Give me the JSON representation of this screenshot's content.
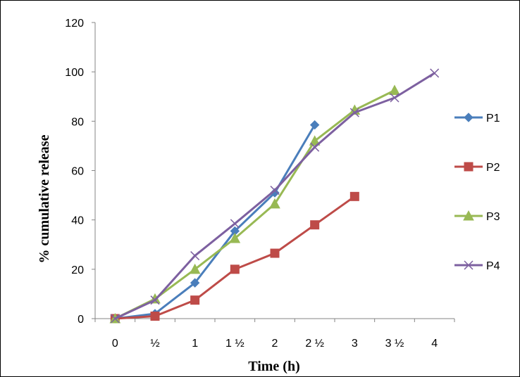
{
  "chart_data": {
    "type": "line",
    "title": "",
    "xlabel": "Time (h)",
    "ylabel": "% cumulative release",
    "categories": [
      "0",
      "½",
      "1",
      "1 ½",
      "2",
      "2 ½",
      "3",
      "3 ½",
      "4"
    ],
    "x": [
      0,
      0.5,
      1,
      1.5,
      2,
      2.5,
      3,
      3.5,
      4
    ],
    "ylim": [
      0,
      120
    ],
    "yticks": [
      0,
      20,
      40,
      60,
      80,
      100,
      120
    ],
    "grid": false,
    "legend_position": "right",
    "series": [
      {
        "name": "P1",
        "color": "#4A7EBB",
        "marker": "diamond",
        "values": [
          0,
          2,
          14.5,
          35.5,
          51,
          78.5,
          null,
          null,
          null
        ]
      },
      {
        "name": "P2",
        "color": "#BE4B48",
        "marker": "square",
        "values": [
          0,
          1,
          7.5,
          20,
          26.5,
          38,
          49.5,
          null,
          null
        ]
      },
      {
        "name": "P3",
        "color": "#98B954",
        "marker": "triangle",
        "values": [
          0,
          8,
          20,
          32.5,
          46.5,
          72,
          84.5,
          92.5,
          null
        ]
      },
      {
        "name": "P4",
        "color": "#7D60A0",
        "marker": "x",
        "values": [
          0,
          7.5,
          25.5,
          38.5,
          52,
          69.5,
          83.5,
          89.5,
          99.5
        ]
      }
    ]
  }
}
